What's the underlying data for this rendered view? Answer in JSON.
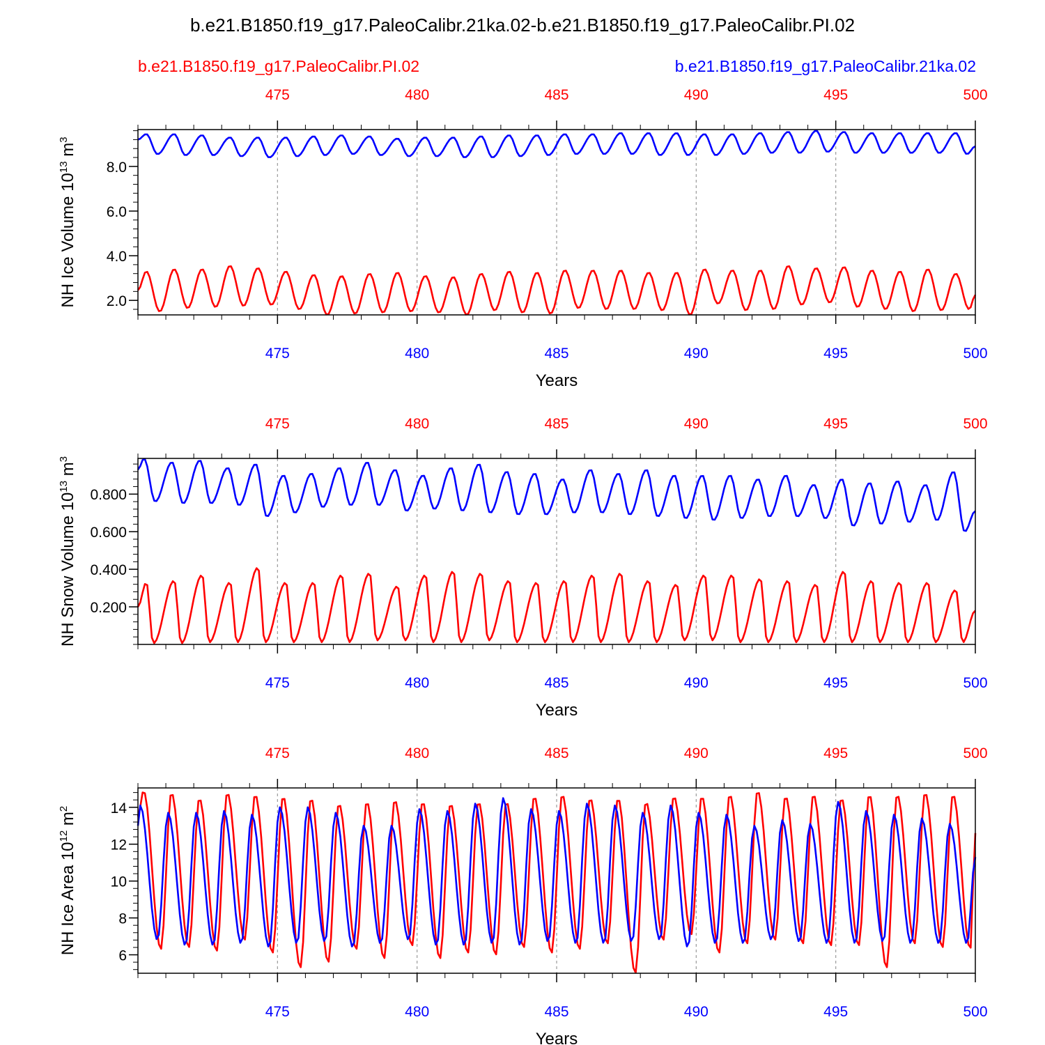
{
  "title": "b.e21.B1850.f19_g17.PaleoCalibr.21ka.02-b.e21.B1850.f19_g17.PaleoCalibr.PI.02",
  "legend": {
    "left": {
      "label": "b.e21.B1850.f19_g17.PaleoCalibr.PI.02",
      "color": "#ff0000"
    },
    "right": {
      "label": "b.e21.B1850.f19_g17.PaleoCalibr.21ka.02",
      "color": "#0000ff"
    }
  },
  "colors": {
    "pi": "#ff0000",
    "lgm": "#0000ff",
    "axis": "#000000",
    "grid": "#999999"
  },
  "chart_data": [
    {
      "type": "line",
      "ylabel": "NH Ice Volume",
      "yunit_base": "10",
      "yunit_exp": "13",
      "yunit_tail": " m",
      "yunit_pow": "3",
      "xlabel": "Years",
      "xlim": [
        470.0,
        500.0
      ],
      "ylim": [
        1.35,
        9.65
      ],
      "yticks": [
        2.0,
        4.0,
        6.0,
        8.0
      ],
      "ytick_labels": [
        "2.0",
        "4.0",
        "6.0",
        "8.0"
      ],
      "yminor_step": 0.4,
      "xticks": [
        475,
        480,
        485,
        490,
        495,
        500
      ],
      "xtick_labels": [
        "475",
        "480",
        "485",
        "490",
        "495",
        "500"
      ],
      "series": [
        {
          "name": "b.e21.B1850.f19_g17.PaleoCalibr.PI.02",
          "peaks": [
            3.3,
            3.4,
            3.4,
            3.55,
            3.45,
            3.3,
            3.15,
            3.1,
            3.2,
            3.25,
            3.1,
            3.05,
            3.2,
            3.3,
            3.25,
            3.35,
            3.35,
            3.35,
            3.25,
            3.25,
            3.4,
            3.35,
            3.35,
            3.55,
            3.45,
            3.5,
            3.35,
            3.3,
            3.4,
            3.2
          ],
          "troughs": [
            1.5,
            1.65,
            1.7,
            1.75,
            1.8,
            1.6,
            1.35,
            1.4,
            1.45,
            1.5,
            1.45,
            1.35,
            1.55,
            1.45,
            1.4,
            1.65,
            1.6,
            1.6,
            1.55,
            1.35,
            1.85,
            1.55,
            1.6,
            1.8,
            1.9,
            1.7,
            1.6,
            1.5,
            1.55,
            1.6
          ],
          "start": 2.45,
          "end": 2.25,
          "peak_phase": 0.3,
          "trough_phase": 0.78
        },
        {
          "name": "b.e21.B1850.f19_g17.PaleoCalibr.21ka.02",
          "peaks": [
            9.45,
            9.45,
            9.4,
            9.3,
            9.3,
            9.3,
            9.35,
            9.4,
            9.35,
            9.25,
            9.3,
            9.3,
            9.35,
            9.4,
            9.4,
            9.45,
            9.45,
            9.5,
            9.5,
            9.5,
            9.45,
            9.45,
            9.5,
            9.55,
            9.6,
            9.55,
            9.5,
            9.5,
            9.5,
            9.5
          ],
          "troughs": [
            8.55,
            8.5,
            8.5,
            8.45,
            8.4,
            8.45,
            8.5,
            8.55,
            8.5,
            8.45,
            8.45,
            8.4,
            8.4,
            8.45,
            8.5,
            8.55,
            8.55,
            8.55,
            8.5,
            8.5,
            8.5,
            8.55,
            8.6,
            8.6,
            8.65,
            8.6,
            8.6,
            8.6,
            8.6,
            8.55
          ],
          "start": 9.2,
          "end": 8.9,
          "peak_phase": 0.3,
          "trough_phase": 0.7
        }
      ]
    },
    {
      "type": "line",
      "ylabel": "NH Snow Volume",
      "yunit_base": "10",
      "yunit_exp": "13",
      "yunit_tail": " m",
      "yunit_pow": "3",
      "xlabel": "Years",
      "xlim": [
        470.0,
        500.0
      ],
      "ylim": [
        0.0,
        0.99
      ],
      "yticks": [
        0.2,
        0.4,
        0.6,
        0.8
      ],
      "ytick_labels": [
        "0.200",
        "0.400",
        "0.600",
        "0.800"
      ],
      "yminor_step": 0.04,
      "xticks": [
        475,
        480,
        485,
        490,
        495,
        500
      ],
      "xtick_labels": [
        "475",
        "480",
        "485",
        "490",
        "495",
        "500"
      ],
      "series": [
        {
          "name": "b.e21.B1850.f19_g17.PaleoCalibr.PI.02",
          "peaks": [
            0.33,
            0.34,
            0.37,
            0.33,
            0.41,
            0.33,
            0.33,
            0.37,
            0.38,
            0.31,
            0.37,
            0.39,
            0.38,
            0.34,
            0.33,
            0.34,
            0.37,
            0.38,
            0.34,
            0.32,
            0.37,
            0.37,
            0.35,
            0.34,
            0.32,
            0.39,
            0.34,
            0.33,
            0.33,
            0.29
          ],
          "troughs": [
            0.005,
            0.005,
            0.01,
            0.01,
            0.01,
            0.01,
            0.01,
            0.01,
            0.02,
            0.02,
            0.01,
            0.01,
            0.02,
            0.01,
            0.01,
            0.01,
            0.01,
            0.01,
            0.01,
            0.02,
            0.02,
            0.01,
            0.01,
            0.01,
            0.01,
            0.01,
            0.01,
            0.01,
            0.01,
            0.01
          ],
          "start": 0.2,
          "end": 0.18,
          "peak_phase": 0.3,
          "trough_phase": 0.55
        },
        {
          "name": "b.e21.B1850.f19_g17.PaleoCalibr.21ka.02",
          "peaks": [
            0.99,
            0.97,
            0.98,
            0.94,
            0.96,
            0.9,
            0.91,
            0.94,
            0.97,
            0.93,
            0.9,
            0.94,
            0.96,
            0.92,
            0.91,
            0.88,
            0.93,
            0.91,
            0.93,
            0.9,
            0.9,
            0.9,
            0.88,
            0.9,
            0.85,
            0.88,
            0.86,
            0.87,
            0.85,
            0.92
          ],
          "troughs": [
            0.76,
            0.75,
            0.75,
            0.74,
            0.68,
            0.7,
            0.73,
            0.74,
            0.74,
            0.71,
            0.72,
            0.71,
            0.7,
            0.69,
            0.69,
            0.7,
            0.7,
            0.69,
            0.68,
            0.67,
            0.66,
            0.67,
            0.68,
            0.68,
            0.67,
            0.63,
            0.64,
            0.65,
            0.66,
            0.6
          ],
          "start": 0.93,
          "end": 0.71,
          "peak_phase": 0.22,
          "trough_phase": 0.62
        }
      ]
    },
    {
      "type": "line",
      "ylabel": "NH Ice Area",
      "yunit_base": "10",
      "yunit_exp": "12",
      "yunit_tail": " m",
      "yunit_pow": "2",
      "xlabel": "Years",
      "xlim": [
        470.0,
        500.0
      ],
      "ylim": [
        5.0,
        15.05
      ],
      "yticks": [
        6,
        8,
        10,
        12,
        14
      ],
      "ytick_labels": [
        "6",
        "8",
        "10",
        "12",
        "14"
      ],
      "yminor_step": 0.4,
      "xticks": [
        475,
        480,
        485,
        490,
        495,
        500
      ],
      "xtick_labels": [
        "475",
        "480",
        "485",
        "490",
        "495",
        "500"
      ],
      "series": [
        {
          "name": "b.e21.B1850.f19_g17.PaleoCalibr.PI.02",
          "peaks": [
            14.9,
            14.8,
            14.5,
            14.8,
            14.7,
            14.6,
            14.5,
            14.2,
            14.3,
            14.4,
            14.3,
            14.2,
            14.3,
            14.3,
            14.6,
            14.7,
            14.5,
            14.5,
            14.3,
            14.6,
            14.6,
            14.7,
            14.9,
            14.6,
            14.7,
            14.5,
            14.7,
            14.7,
            14.8,
            14.7
          ],
          "troughs": [
            6.3,
            6.4,
            6.2,
            6.8,
            6.1,
            5.3,
            5.6,
            6.3,
            5.8,
            6.5,
            5.8,
            6.1,
            6.0,
            6.4,
            6.1,
            6.3,
            6.6,
            5.0,
            6.8,
            7.1,
            6.1,
            6.6,
            6.8,
            6.6,
            6.5,
            6.5,
            5.3,
            6.6,
            6.4,
            6.3
          ],
          "start": 13.5,
          "end": 12.6,
          "peak_phase": 0.2,
          "trough_phase": 0.82
        },
        {
          "name": "b.e21.B1850.f19_g17.PaleoCalibr.21ka.02",
          "peaks": [
            14.1,
            13.7,
            13.7,
            13.8,
            13.6,
            14.0,
            14.0,
            13.7,
            13.0,
            13.0,
            13.9,
            13.8,
            14.2,
            14.5,
            13.9,
            13.8,
            14.2,
            14.1,
            13.7,
            14.1,
            13.7,
            13.6,
            13.0,
            13.3,
            13.1,
            14.3,
            13.8,
            13.6,
            13.4,
            13.1
          ],
          "troughs": [
            6.8,
            6.5,
            6.5,
            6.6,
            6.4,
            6.6,
            6.7,
            6.4,
            6.6,
            6.8,
            6.5,
            6.5,
            6.6,
            6.5,
            6.7,
            6.6,
            6.6,
            6.7,
            6.8,
            6.4,
            6.6,
            6.6,
            6.8,
            6.7,
            6.6,
            6.6,
            6.7,
            6.6,
            6.6,
            6.6
          ],
          "start": 13.0,
          "end": 11.3,
          "peak_phase": 0.08,
          "trough_phase": 0.7
        }
      ]
    }
  ]
}
